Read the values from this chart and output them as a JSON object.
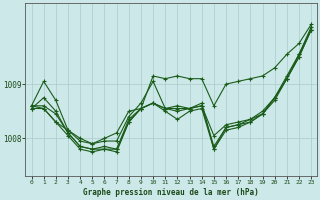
{
  "title": "Graphe pression niveau de la mer (hPa)",
  "background_color": "#cce8e8",
  "grid_color": "#aacccc",
  "line_color": "#1a5c1a",
  "x_labels": [
    "0",
    "1",
    "2",
    "3",
    "4",
    "5",
    "6",
    "7",
    "8",
    "9",
    "10",
    "11",
    "12",
    "13",
    "14",
    "15",
    "16",
    "17",
    "18",
    "19",
    "20",
    "21",
    "22",
    "23"
  ],
  "ylim": [
    1007.3,
    1010.5
  ],
  "yticks": [
    1008,
    1009
  ],
  "series": [
    [
      1008.55,
      1008.75,
      1008.5,
      1008.1,
      1007.85,
      1007.8,
      1007.85,
      1007.8,
      1008.35,
      1008.55,
      1008.65,
      1008.55,
      1008.6,
      1008.55,
      1008.65,
      1007.8,
      1008.2,
      1008.25,
      1008.35,
      1008.45,
      1008.75,
      1009.1,
      1009.5,
      1010.0
    ],
    [
      1008.6,
      1008.6,
      1008.45,
      1008.1,
      1007.85,
      1007.8,
      1007.8,
      1007.8,
      1008.3,
      1008.55,
      1008.65,
      1008.55,
      1008.5,
      1008.55,
      1008.6,
      1007.85,
      1008.2,
      1008.25,
      1008.3,
      1008.45,
      1008.75,
      1009.1,
      1009.55,
      1010.05
    ],
    [
      1008.6,
      1008.55,
      1008.3,
      1008.05,
      1007.8,
      1007.75,
      1007.8,
      1007.75,
      1008.3,
      1008.55,
      1008.65,
      1008.5,
      1008.35,
      1008.5,
      1008.55,
      1007.8,
      1008.15,
      1008.2,
      1008.3,
      1008.45,
      1008.7,
      1009.1,
      1009.5,
      1010.0
    ],
    [
      1008.6,
      1009.05,
      1008.7,
      1008.15,
      1007.95,
      1007.9,
      1007.95,
      1007.95,
      1008.4,
      1008.65,
      1009.05,
      1008.55,
      1008.55,
      1008.55,
      1008.6,
      1008.05,
      1008.25,
      1008.3,
      1008.35,
      1008.5,
      1008.75,
      1009.15,
      1009.55,
      1010.0
    ],
    [
      1008.55,
      1008.55,
      1008.3,
      1008.15,
      1008.0,
      1007.9,
      1008.0,
      1008.1,
      1008.5,
      1008.55,
      1009.15,
      1009.1,
      1009.15,
      1009.1,
      1009.1,
      1008.6,
      1009.0,
      1009.05,
      1009.1,
      1009.15,
      1009.3,
      1009.55,
      1009.75,
      1010.1
    ]
  ]
}
